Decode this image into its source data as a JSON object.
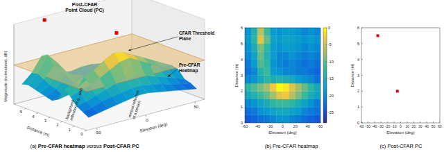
{
  "chart_data": [
    {
      "type": "surface",
      "caption": "(a) Pre-CFAR heatmap versus Post-CFAR PC",
      "caption_bold": [
        "Pre-CFAR heatmap",
        "Post-CFAR PC"
      ],
      "x_label": "Elevation (deg)",
      "y_label": "Distance (m)",
      "z_label": "Magnitude (normalized, dB)",
      "xlim": [
        -60,
        60
      ],
      "xticks": [
        -50,
        0,
        50
      ],
      "ylim": [
        0,
        6
      ],
      "yticks": [
        0,
        1,
        2,
        3,
        4,
        5
      ],
      "zlim": [
        -30,
        15
      ],
      "clim": [
        -28,
        0
      ],
      "x_edges": [
        -60,
        -50,
        -40,
        -30,
        -20,
        -10,
        0,
        10,
        20,
        30,
        40,
        50,
        60
      ],
      "y_edges": [
        0,
        0.5,
        1,
        1.5,
        2,
        2.5,
        3,
        3.5,
        4,
        4.5,
        5,
        5.5,
        6
      ],
      "cells": [
        [
          -24,
          -23,
          -22,
          -21,
          -20,
          -19,
          -19,
          -20,
          -21,
          -22,
          -23,
          -24
        ],
        [
          -22,
          -21,
          -19,
          -18,
          -17,
          -16,
          -16,
          -17,
          -18,
          -20,
          -21,
          -22
        ],
        [
          -20,
          -19,
          -17,
          -15,
          -13,
          -12,
          -12,
          -13,
          -15,
          -17,
          -19,
          -21
        ],
        [
          -16,
          -14,
          -12,
          -10,
          -7,
          -4,
          -3,
          -6,
          -9,
          -12,
          -15,
          -17
        ],
        [
          -13,
          -11,
          -9,
          -7,
          -3,
          0,
          -1,
          -4,
          -7,
          -10,
          -13,
          -16
        ],
        [
          -20,
          -19,
          -16,
          -13,
          -15,
          -14,
          -15,
          -16,
          -18,
          -19,
          -20,
          -22
        ],
        [
          -22,
          -20,
          -14,
          -12,
          -18,
          -19,
          -20,
          -20,
          -21,
          -21,
          -22,
          -23
        ],
        [
          -21,
          -18,
          -11,
          -13,
          -19,
          -20,
          -21,
          -20,
          -21,
          -22,
          -21,
          -22
        ],
        [
          -20,
          -17,
          -10,
          -14,
          -18,
          -20,
          -20,
          -19,
          -20,
          -21,
          -20,
          -21
        ],
        [
          -19,
          -15,
          -9,
          -13,
          -18,
          -19,
          -18,
          -18,
          -19,
          -20,
          -19,
          -20
        ],
        [
          -18,
          -13,
          -4,
          -10,
          -17,
          -18,
          -17,
          -17,
          -18,
          -19,
          -18,
          -19
        ],
        [
          -19,
          -14,
          -6,
          -12,
          -18,
          -19,
          -18,
          -18,
          -19,
          -20,
          -19,
          -20
        ]
      ],
      "threshold": -8,
      "points": {
        "x": [
          -35,
          -5
        ],
        "y": [
          5.5,
          2
        ],
        "z": [
          15,
          12
        ],
        "color": "#e00000"
      },
      "annotations": [
        {
          "lines": [
            "Post-CFAR",
            "Point Cloud (PC)"
          ]
        },
        {
          "lines": [
            "CFAR Threshold",
            "Plane"
          ]
        },
        {
          "lines": [
            "Pre-CFAR",
            "Heatmap"
          ]
        },
        {
          "lines": [
            "background",
            "reflection (e.g., wall)"
          ]
        },
        {
          "lines": [
            "vertical reflection",
            "of a person"
          ]
        }
      ]
    },
    {
      "type": "heatmap",
      "caption": "(b) Pre-CFAR heatmap",
      "x_label": "Elevation (deg)",
      "y_label": "Distance (m)",
      "xlim": [
        -60,
        60
      ],
      "xticks": [
        -60,
        -40,
        -20,
        0,
        20,
        40,
        60
      ],
      "ylim": [
        0,
        6
      ],
      "yticks": [
        0,
        1,
        2,
        3,
        4,
        5,
        6
      ],
      "x_edges": [
        -60,
        -50,
        -40,
        -30,
        -20,
        -10,
        0,
        10,
        20,
        30,
        40,
        50,
        60
      ],
      "y_edges": [
        0,
        0.5,
        1,
        1.5,
        2,
        2.5,
        3,
        3.5,
        4,
        4.5,
        5,
        5.5,
        6
      ],
      "cells": [
        [
          -24,
          -23,
          -22,
          -21,
          -20,
          -19,
          -19,
          -20,
          -21,
          -22,
          -23,
          -24
        ],
        [
          -22,
          -21,
          -19,
          -18,
          -17,
          -16,
          -16,
          -17,
          -18,
          -20,
          -21,
          -22
        ],
        [
          -20,
          -19,
          -17,
          -15,
          -13,
          -12,
          -12,
          -13,
          -15,
          -17,
          -19,
          -21
        ],
        [
          -16,
          -14,
          -12,
          -10,
          -7,
          -4,
          -3,
          -6,
          -9,
          -12,
          -15,
          -17
        ],
        [
          -13,
          -11,
          -9,
          -7,
          -3,
          0,
          -1,
          -4,
          -7,
          -10,
          -13,
          -16
        ],
        [
          -20,
          -19,
          -16,
          -13,
          -15,
          -14,
          -15,
          -16,
          -18,
          -19,
          -20,
          -22
        ],
        [
          -22,
          -20,
          -14,
          -12,
          -18,
          -19,
          -20,
          -20,
          -21,
          -21,
          -22,
          -23
        ],
        [
          -21,
          -18,
          -11,
          -13,
          -19,
          -20,
          -21,
          -20,
          -21,
          -22,
          -21,
          -22
        ],
        [
          -20,
          -17,
          -10,
          -14,
          -18,
          -20,
          -20,
          -19,
          -20,
          -21,
          -20,
          -21
        ],
        [
          -19,
          -15,
          -9,
          -13,
          -18,
          -19,
          -18,
          -18,
          -19,
          -20,
          -19,
          -20
        ],
        [
          -18,
          -13,
          -4,
          -10,
          -17,
          -18,
          -17,
          -17,
          -18,
          -19,
          -18,
          -19
        ],
        [
          -19,
          -14,
          -6,
          -12,
          -18,
          -19,
          -18,
          -18,
          -19,
          -20,
          -19,
          -20
        ]
      ],
      "clim": [
        -28,
        0
      ],
      "colorbar_ticks": [
        0,
        -5,
        -10,
        -15,
        -20,
        -25
      ]
    },
    {
      "type": "scatter",
      "caption": "(c) Post-CFAR PC",
      "x_label": "Elevation (deg)",
      "y_label": "Distance (m)",
      "xlim": [
        -60,
        60
      ],
      "xticks": [
        -60,
        -50,
        -40,
        -30,
        -20,
        -10,
        0,
        10,
        20,
        30,
        40,
        50,
        60
      ],
      "ylim": [
        0,
        6
      ],
      "yticks": [
        0,
        1,
        2,
        3,
        4,
        5,
        6
      ],
      "x": [
        -35,
        -5
      ],
      "y": [
        5.5,
        2
      ],
      "color": "#e00000",
      "marker": "square"
    }
  ]
}
